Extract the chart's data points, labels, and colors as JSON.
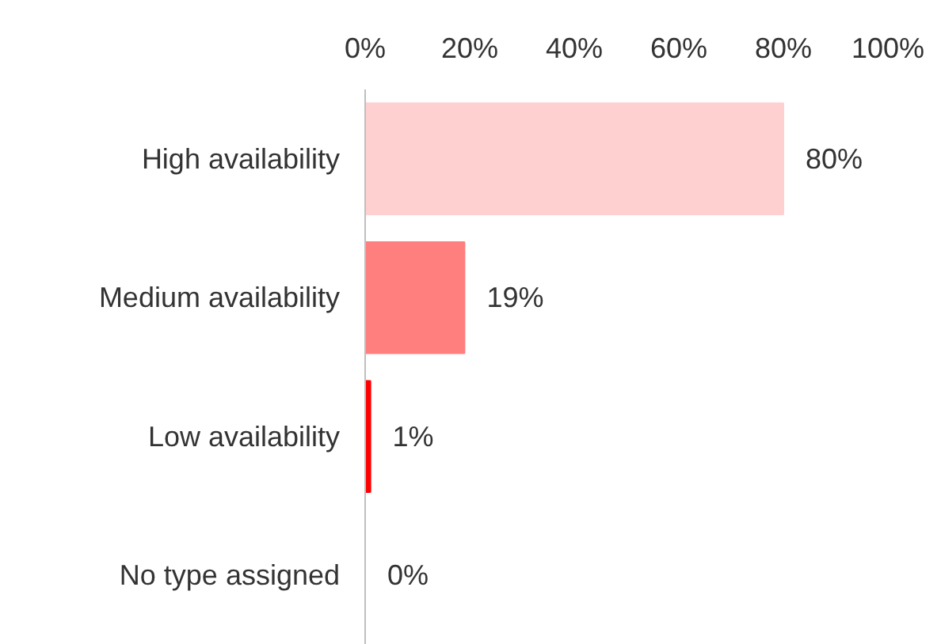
{
  "chart_data": {
    "type": "bar",
    "orientation": "horizontal",
    "categories": [
      "High availability",
      "Medium availability",
      "Low availability",
      "No type assigned"
    ],
    "values": [
      80,
      19,
      1,
      0
    ],
    "colors": [
      "#ffd0d0",
      "#ff7f7f",
      "#ff0000",
      "#ffd0d0"
    ],
    "value_labels": [
      "80%",
      "19%",
      "1%",
      "0%"
    ],
    "xlim": [
      0,
      100
    ],
    "xticks": [
      {
        "value": 0,
        "label": "0%"
      },
      {
        "value": 20,
        "label": "20%"
      },
      {
        "value": 40,
        "label": "40%"
      },
      {
        "value": 60,
        "label": "60%"
      },
      {
        "value": 80,
        "label": "80%"
      },
      {
        "value": 100,
        "label": "100%"
      }
    ]
  }
}
